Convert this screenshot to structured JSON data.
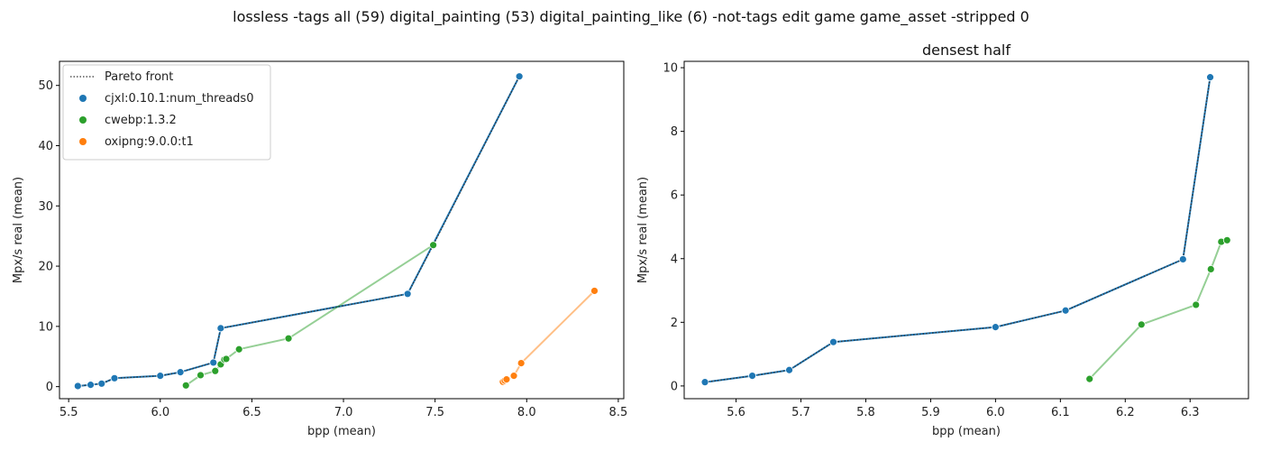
{
  "suptitle": "lossless -tags all (59) digital_painting (53) digital_painting_like (6) -not-tags edit game game_asset -stripped 0",
  "chart_data": [
    {
      "type": "line",
      "title": "",
      "xlabel": "bpp (mean)",
      "ylabel": "Mpx/s real (mean)",
      "xlim": [
        5.45,
        8.53
      ],
      "ylim": [
        -2.0,
        54.0
      ],
      "xticks": [
        5.5,
        6.0,
        6.5,
        7.0,
        7.5,
        8.0,
        8.5
      ],
      "xtick_labels": [
        "5.5",
        "6.0",
        "6.5",
        "7.0",
        "7.5",
        "8.0",
        "8.5"
      ],
      "yticks": [
        0,
        10,
        20,
        30,
        40,
        50
      ],
      "ytick_labels": [
        "0",
        "10",
        "20",
        "30",
        "40",
        "50"
      ],
      "grid": false,
      "legend": {
        "placement": "top-left",
        "entries": [
          {
            "label": "Pareto front",
            "kind": "line",
            "color": "#333333"
          },
          {
            "label": "cjxl:0.10.1:num_threads0",
            "kind": "marker",
            "color": "#1f77b4"
          },
          {
            "label": "cwebp:1.3.2",
            "kind": "marker",
            "color": "#2ca02c"
          },
          {
            "label": "oxipng:9.0.0:t1",
            "kind": "marker",
            "color": "#ff7f0e"
          }
        ]
      },
      "series": [
        {
          "name": "cjxl:0.10.1:num_threads0",
          "color": "#1f77b4",
          "x": [
            5.55,
            5.62,
            5.68,
            5.75,
            6.0,
            6.11,
            6.29,
            6.33,
            7.35,
            7.96
          ],
          "y": [
            0.1,
            0.3,
            0.5,
            1.4,
            1.8,
            2.4,
            4.0,
            9.7,
            15.4,
            51.5
          ]
        },
        {
          "name": "cwebp:1.3.2",
          "color": "#2ca02c",
          "x": [
            6.14,
            6.22,
            6.3,
            6.33,
            6.35,
            6.36,
            6.43,
            6.7,
            7.49
          ],
          "y": [
            0.2,
            1.9,
            2.6,
            3.7,
            4.5,
            4.6,
            6.2,
            8.0,
            23.5
          ]
        },
        {
          "name": "oxipng:9.0.0:t1",
          "color": "#ff7f0e",
          "x": [
            7.87,
            7.88,
            7.89,
            7.93,
            7.97,
            8.37
          ],
          "y": [
            0.8,
            1.0,
            1.2,
            1.8,
            3.9,
            15.9
          ]
        }
      ],
      "pareto": {
        "color": "#333333",
        "x": [
          5.55,
          5.62,
          5.68,
          5.75,
          6.0,
          6.11,
          6.29,
          6.33,
          7.35,
          7.49,
          7.96
        ],
        "y": [
          0.1,
          0.3,
          0.5,
          1.4,
          1.8,
          2.4,
          4.0,
          9.7,
          15.4,
          23.5,
          51.5
        ]
      }
    },
    {
      "type": "line",
      "title": "densest half",
      "xlabel": "bpp (mean)",
      "ylabel": "Mpx/s real (mean)",
      "xlim": [
        5.52,
        6.39
      ],
      "ylim": [
        -0.4,
        10.2
      ],
      "xticks": [
        5.6,
        5.7,
        5.8,
        5.9,
        6.0,
        6.1,
        6.2,
        6.3
      ],
      "xtick_labels": [
        "5.6",
        "5.7",
        "5.8",
        "5.9",
        "6.0",
        "6.1",
        "6.2",
        "6.3"
      ],
      "yticks": [
        0,
        2,
        4,
        6,
        8,
        10
      ],
      "ytick_labels": [
        "0",
        "2",
        "4",
        "6",
        "8",
        "10"
      ],
      "grid": false,
      "series": [
        {
          "name": "cjxl:0.10.1:num_threads0",
          "color": "#1f77b4",
          "x": [
            5.552,
            5.625,
            5.682,
            5.75,
            6.0,
            6.108,
            6.289,
            6.331
          ],
          "y": [
            0.12,
            0.32,
            0.5,
            1.38,
            1.85,
            2.37,
            3.98,
            9.7
          ]
        },
        {
          "name": "cwebp:1.3.2",
          "color": "#2ca02c",
          "x": [
            6.145,
            6.225,
            6.309,
            6.332,
            6.348,
            6.357
          ],
          "y": [
            0.22,
            1.93,
            2.55,
            3.67,
            4.53,
            4.58
          ]
        }
      ],
      "pareto": {
        "color": "#333333",
        "x": [
          5.552,
          5.625,
          5.682,
          5.75,
          6.0,
          6.108,
          6.289,
          6.331
        ],
        "y": [
          0.12,
          0.32,
          0.5,
          1.38,
          1.85,
          2.37,
          3.98,
          9.7
        ]
      }
    }
  ]
}
